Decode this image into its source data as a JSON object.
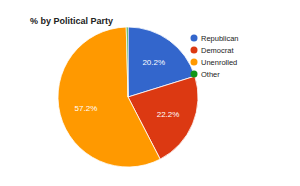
{
  "chart_data": {
    "type": "pie",
    "title": "% by Political Party",
    "categories": [
      "Republican",
      "Democrat",
      "Unenrolled",
      "Other"
    ],
    "values": [
      20.2,
      22.2,
      57.2,
      0.4
    ],
    "value_labels": [
      "20.2%",
      "22.2%",
      "57.2%",
      null
    ],
    "colors": [
      "#3366cc",
      "#dc3912",
      "#ff9900",
      "#109618"
    ],
    "data_labels": true,
    "legend": "right"
  }
}
